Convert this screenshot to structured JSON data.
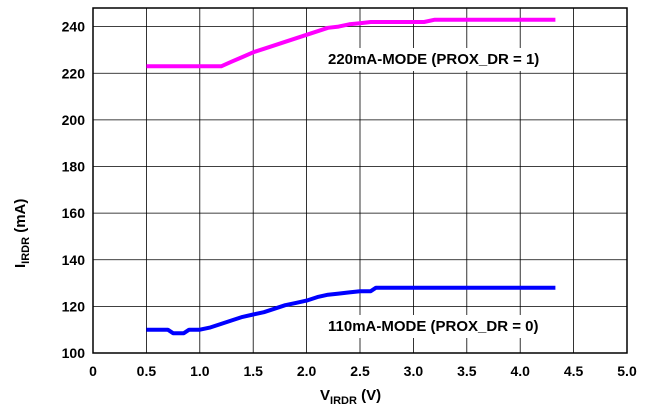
{
  "chart_data": {
    "type": "line",
    "title": "",
    "xlabel": {
      "main": "V",
      "sub": "IRDR",
      "unit": " (V)"
    },
    "ylabel": {
      "main": "I",
      "sub": "IRDR",
      "unit": " (mA)"
    },
    "xlim": [
      0,
      5.0
    ],
    "ylim": [
      100,
      248
    ],
    "xticks": [
      "0",
      "0.5",
      "1.0",
      "1.5",
      "2.0",
      "2.5",
      "3.0",
      "3.5",
      "4.0",
      "4.5",
      "5.0"
    ],
    "yticks": [
      "100",
      "120",
      "140",
      "160",
      "180",
      "200",
      "220",
      "240"
    ],
    "grid": true,
    "annotations": [
      {
        "text": "220mA-MODE (PROX_DR = 1)",
        "series": "220mA"
      },
      {
        "text": "110mA-MODE (PROX_DR = 0)",
        "series": "110mA"
      }
    ],
    "series": [
      {
        "color": "#ff00ff",
        "x": [
          0.5,
          0.6,
          0.7,
          0.8,
          0.9,
          1.0,
          1.1,
          1.2,
          1.3,
          1.4,
          1.5,
          1.6,
          1.7,
          1.8,
          1.9,
          2.0,
          2.1,
          2.2,
          2.3,
          2.4,
          2.5,
          2.6,
          2.7,
          2.8,
          3.0,
          3.1,
          3.2,
          3.3,
          3.5,
          4.0,
          4.33
        ],
        "y": [
          223,
          223,
          223,
          223,
          223,
          223,
          223,
          223,
          225,
          227,
          229,
          230.5,
          232,
          233.5,
          235,
          236.5,
          238,
          239.5,
          240,
          241,
          241.5,
          242,
          242,
          242,
          242,
          242,
          243,
          243,
          243,
          243,
          243
        ]
      },
      {
        "color": "#0000ff",
        "x": [
          0.5,
          0.6,
          0.7,
          0.75,
          0.8,
          0.85,
          0.9,
          0.95,
          1.0,
          1.1,
          1.2,
          1.3,
          1.4,
          1.5,
          1.6,
          1.7,
          1.8,
          1.9,
          2.0,
          2.1,
          2.2,
          2.3,
          2.4,
          2.5,
          2.6,
          2.65,
          2.7,
          2.8,
          3.0,
          3.5,
          4.0,
          4.33
        ],
        "y": [
          110,
          110,
          110,
          108.5,
          108.5,
          108.5,
          110,
          110,
          110,
          111,
          112.5,
          114,
          115.5,
          116.5,
          117.5,
          119,
          120.5,
          121.5,
          122.5,
          124,
          125,
          125.5,
          126,
          126.5,
          126.5,
          128,
          128,
          128,
          128,
          128,
          128,
          128
        ]
      }
    ]
  }
}
